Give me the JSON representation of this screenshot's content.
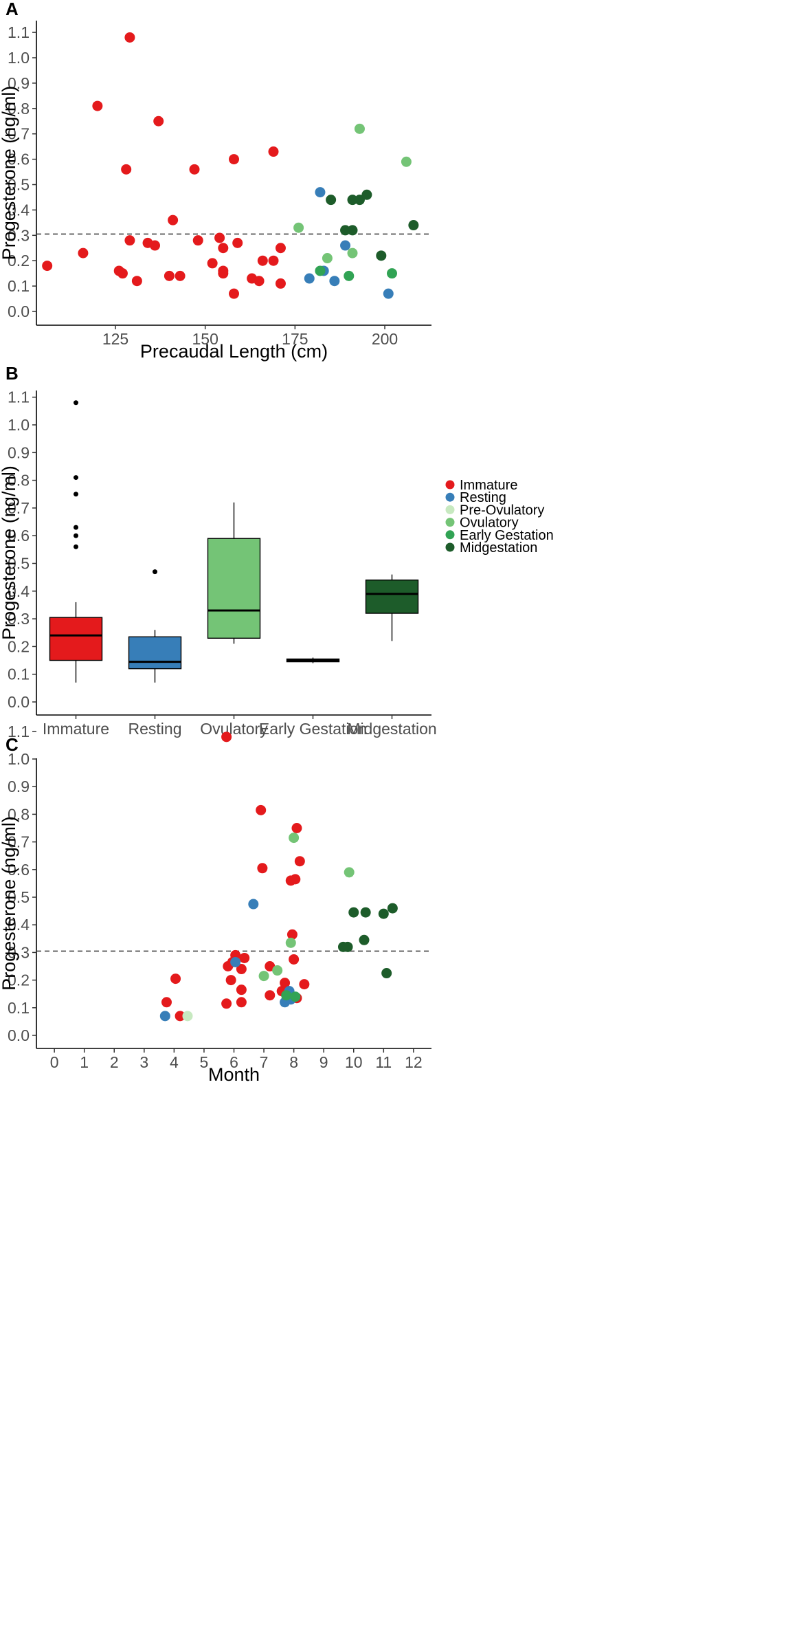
{
  "colors": {
    "Immature": "#e41a1c",
    "Resting": "#377eb8",
    "Pre-Ovulatory": "#c7e9c0",
    "Ovulatory": "#74c476",
    "Early Gestation": "#31a354",
    "Midgestation": "#1d5c2a"
  },
  "legend": {
    "items": [
      "Immature",
      "Resting",
      "Pre-Ovulatory",
      "Ovulatory",
      "Early Gestation",
      "Midgestation"
    ]
  },
  "chart_data": [
    {
      "panel": "A",
      "type": "scatter",
      "title": "",
      "xlabel": "Precaudal Length (cm)",
      "ylabel": "Progesterone (ng/ml)",
      "xlim": [
        103,
        213
      ],
      "ylim": [
        -0.05,
        1.15
      ],
      "xticks": [
        125,
        150,
        175,
        200
      ],
      "xtick_labels": [
        "125",
        "150",
        "175",
        "200"
      ],
      "yticks": [
        0.0,
        0.1,
        0.2,
        0.3,
        0.4,
        0.5,
        0.6,
        0.7,
        0.8,
        0.9,
        1.0,
        1.1
      ],
      "ytick_labels": [
        "0.0",
        "0.1",
        "0.2",
        "0.3",
        "0.4",
        "0.5",
        "0.6",
        "0.7",
        "0.8",
        "0.9",
        "1.0",
        "1.1"
      ],
      "reference_line": 0.305,
      "series": [
        {
          "name": "Immature",
          "points": [
            [
              106,
              0.18
            ],
            [
              116,
              0.23
            ],
            [
              120,
              0.81
            ],
            [
              126,
              0.16
            ],
            [
              127,
              0.15
            ],
            [
              128,
              0.56
            ],
            [
              129,
              1.08
            ],
            [
              129,
              0.28
            ],
            [
              131,
              0.12
            ],
            [
              134,
              0.27
            ],
            [
              136,
              0.26
            ],
            [
              137,
              0.75
            ],
            [
              140,
              0.14
            ],
            [
              141,
              0.36
            ],
            [
              143,
              0.14
            ],
            [
              147,
              0.56
            ],
            [
              148,
              0.28
            ],
            [
              152,
              0.19
            ],
            [
              154,
              0.29
            ],
            [
              155,
              0.25
            ],
            [
              155,
              0.16
            ],
            [
              155,
              0.15
            ],
            [
              158,
              0.6
            ],
            [
              158,
              0.07
            ],
            [
              159,
              0.27
            ],
            [
              163,
              0.13
            ],
            [
              165,
              0.12
            ],
            [
              166,
              0.2
            ],
            [
              169,
              0.63
            ],
            [
              169,
              0.2
            ],
            [
              171,
              0.25
            ],
            [
              171,
              0.11
            ]
          ]
        },
        {
          "name": "Resting",
          "points": [
            [
              179,
              0.13
            ],
            [
              182,
              0.47
            ],
            [
              183,
              0.16
            ],
            [
              186,
              0.12
            ],
            [
              189,
              0.26
            ],
            [
              201,
              0.07
            ]
          ]
        },
        {
          "name": "Ovulatory",
          "points": [
            [
              176,
              0.33
            ],
            [
              184,
              0.21
            ],
            [
              191,
              0.23
            ],
            [
              193,
              0.72
            ],
            [
              206,
              0.59
            ]
          ]
        },
        {
          "name": "Early Gestation",
          "points": [
            [
              182,
              0.16
            ],
            [
              190,
              0.14
            ],
            [
              202,
              0.15
            ]
          ]
        },
        {
          "name": "Midgestation",
          "points": [
            [
              185,
              0.44
            ],
            [
              189,
              0.32
            ],
            [
              191,
              0.44
            ],
            [
              191,
              0.32
            ],
            [
              193,
              0.44
            ],
            [
              195,
              0.46
            ],
            [
              199,
              0.22
            ],
            [
              208,
              0.34
            ]
          ]
        }
      ]
    },
    {
      "panel": "B",
      "type": "box",
      "title": "",
      "xlabel": "",
      "ylabel": "Progesterone (ng/ml)",
      "ylim": [
        -0.05,
        1.15
      ],
      "yticks": [
        0.0,
        0.1,
        0.2,
        0.3,
        0.4,
        0.5,
        0.6,
        0.7,
        0.8,
        0.9,
        1.0,
        1.1
      ],
      "ytick_labels": [
        "0.0",
        "0.1",
        "0.2",
        "0.3",
        "0.4",
        "0.5",
        "0.6",
        "0.7",
        "0.8",
        "0.9",
        "1.0",
        "1.1"
      ],
      "categories": [
        "Immature",
        "Resting",
        "Ovulatory",
        "Early Gestation",
        "Midgestation"
      ],
      "boxes": [
        {
          "category": "Immature",
          "min": 0.07,
          "q1": 0.15,
          "median": 0.24,
          "q3": 0.305,
          "max": 0.36,
          "outliers": [
            0.56,
            0.6,
            0.63,
            0.75,
            0.81,
            1.08
          ]
        },
        {
          "category": "Resting",
          "min": 0.07,
          "q1": 0.12,
          "median": 0.145,
          "q3": 0.235,
          "max": 0.26,
          "outliers": [
            0.47
          ]
        },
        {
          "category": "Ovulatory",
          "min": 0.21,
          "q1": 0.23,
          "median": 0.33,
          "q3": 0.59,
          "max": 0.72,
          "outliers": []
        },
        {
          "category": "Early Gestation",
          "min": 0.14,
          "q1": 0.145,
          "median": 0.15,
          "q3": 0.155,
          "max": 0.16,
          "outliers": []
        },
        {
          "category": "Midgestation",
          "min": 0.22,
          "q1": 0.32,
          "median": 0.39,
          "q3": 0.44,
          "max": 0.46,
          "outliers": []
        }
      ]
    },
    {
      "panel": "C",
      "type": "scatter",
      "title": "",
      "xlabel": "Month",
      "ylabel": "Progesterone (ng/ml)",
      "xlim": [
        -0.6,
        12.6
      ],
      "ylim": [
        -0.05,
        1.15
      ],
      "xticks": [
        0,
        1,
        2,
        3,
        4,
        5,
        6,
        7,
        8,
        9,
        10,
        11,
        12
      ],
      "xtick_labels": [
        "0",
        "1",
        "2",
        "3",
        "4",
        "5",
        "6",
        "7",
        "8",
        "9",
        "10",
        "11",
        "12"
      ],
      "yticks": [
        0.0,
        0.1,
        0.2,
        0.3,
        0.4,
        0.5,
        0.6,
        0.7,
        0.8,
        0.9,
        1.0,
        1.1
      ],
      "ytick_labels": [
        "0.0",
        "0.1",
        "0.2",
        "0.3",
        "0.4",
        "0.5",
        "0.6",
        "0.7",
        "0.8",
        "0.9",
        "1.0",
        "1.1"
      ],
      "reference_line": 0.305,
      "series": [
        {
          "name": "Immature",
          "points": [
            [
              3.75,
              0.12
            ],
            [
              4.05,
              0.205
            ],
            [
              4.2,
              0.07
            ],
            [
              5.75,
              1.08
            ],
            [
              5.75,
              0.115
            ],
            [
              5.8,
              0.25
            ],
            [
              5.9,
              0.2
            ],
            [
              5.95,
              0.265
            ],
            [
              6.05,
              0.29
            ],
            [
              6.25,
              0.24
            ],
            [
              6.25,
              0.165
            ],
            [
              6.25,
              0.12
            ],
            [
              6.35,
              0.28
            ],
            [
              6.9,
              0.815
            ],
            [
              6.95,
              0.605
            ],
            [
              7.2,
              0.25
            ],
            [
              7.2,
              0.145
            ],
            [
              7.6,
              0.16
            ],
            [
              7.7,
              0.19
            ],
            [
              7.75,
              0.145
            ],
            [
              7.9,
              0.56
            ],
            [
              7.95,
              0.365
            ],
            [
              8.0,
              0.275
            ],
            [
              8.05,
              0.565
            ],
            [
              8.1,
              0.75
            ],
            [
              8.1,
              0.135
            ],
            [
              8.2,
              0.63
            ],
            [
              8.35,
              0.185
            ]
          ]
        },
        {
          "name": "Resting",
          "points": [
            [
              3.7,
              0.07
            ],
            [
              6.05,
              0.265
            ],
            [
              6.65,
              0.475
            ],
            [
              7.7,
              0.12
            ],
            [
              7.85,
              0.16
            ],
            [
              7.9,
              0.13
            ]
          ]
        },
        {
          "name": "Pre-Ovulatory",
          "points": [
            [
              4.45,
              0.07
            ]
          ]
        },
        {
          "name": "Ovulatory",
          "points": [
            [
              7.0,
              0.215
            ],
            [
              7.45,
              0.235
            ],
            [
              7.9,
              0.335
            ],
            [
              8.0,
              0.715
            ],
            [
              9.85,
              0.59
            ]
          ]
        },
        {
          "name": "Early Gestation",
          "points": [
            [
              7.75,
              0.145
            ],
            [
              8.05,
              0.14
            ]
          ]
        },
        {
          "name": "Midgestation",
          "points": [
            [
              9.65,
              0.32
            ],
            [
              9.8,
              0.32
            ],
            [
              10.0,
              0.445
            ],
            [
              10.35,
              0.345
            ],
            [
              10.4,
              0.445
            ],
            [
              11.0,
              0.44
            ],
            [
              11.1,
              0.225
            ],
            [
              11.3,
              0.46
            ]
          ]
        }
      ]
    }
  ]
}
